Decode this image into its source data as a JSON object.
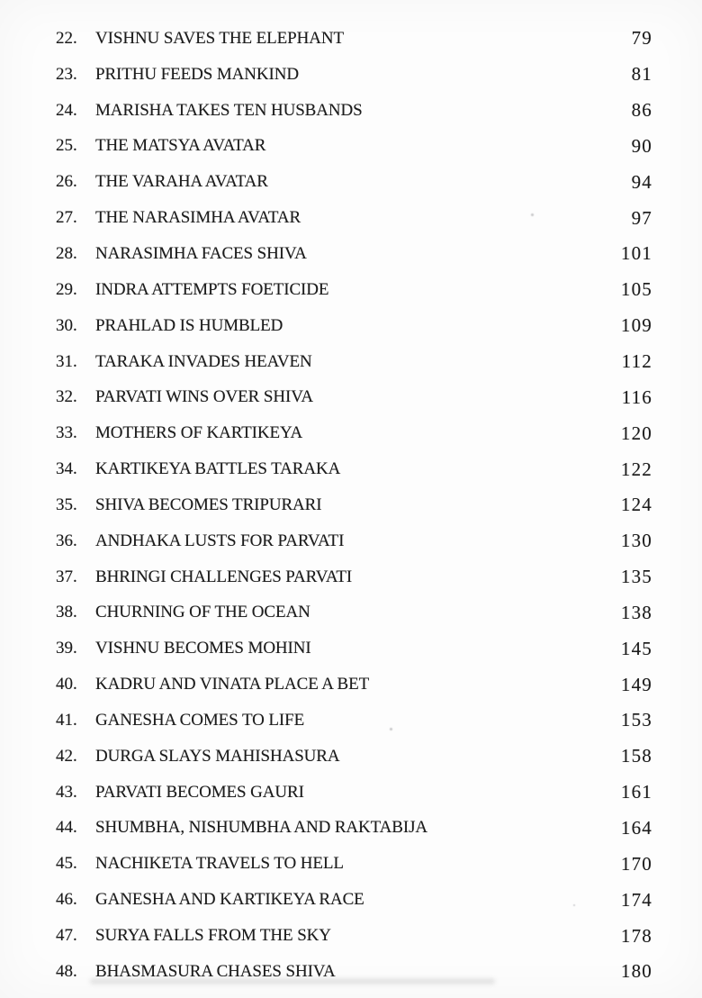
{
  "toc": {
    "entries": [
      {
        "num": "22.",
        "title": "VISHNU SAVES THE ELEPHANT",
        "page": "79"
      },
      {
        "num": "23.",
        "title": "PRITHU FEEDS MANKIND",
        "page": "81"
      },
      {
        "num": "24.",
        "title": "MARISHA TAKES TEN HUSBANDS",
        "page": "86"
      },
      {
        "num": "25.",
        "title": "THE MATSYA AVATAR",
        "page": "90"
      },
      {
        "num": "26.",
        "title": "THE VARAHA AVATAR",
        "page": "94"
      },
      {
        "num": "27.",
        "title": "THE NARASIMHA AVATAR",
        "page": "97"
      },
      {
        "num": "28.",
        "title": "NARASIMHA FACES SHIVA",
        "page": "101"
      },
      {
        "num": "29.",
        "title": "INDRA ATTEMPTS FOETICIDE",
        "page": "105"
      },
      {
        "num": "30.",
        "title": "PRAHLAD IS HUMBLED",
        "page": "109"
      },
      {
        "num": "31.",
        "title": "TARAKA INVADES HEAVEN",
        "page": "112"
      },
      {
        "num": "32.",
        "title": "PARVATI WINS OVER SHIVA",
        "page": "116"
      },
      {
        "num": "33.",
        "title": "MOTHERS OF KARTIKEYA",
        "page": "120"
      },
      {
        "num": "34.",
        "title": "KARTIKEYA BATTLES TARAKA",
        "page": "122"
      },
      {
        "num": "35.",
        "title": "SHIVA BECOMES TRIPURARI",
        "page": "124"
      },
      {
        "num": "36.",
        "title": "ANDHAKA LUSTS FOR PARVATI",
        "page": "130"
      },
      {
        "num": "37.",
        "title": "BHRINGI CHALLENGES PARVATI",
        "page": "135"
      },
      {
        "num": "38.",
        "title": "CHURNING OF THE OCEAN",
        "page": "138"
      },
      {
        "num": "39.",
        "title": "VISHNU BECOMES MOHINI",
        "page": "145"
      },
      {
        "num": "40.",
        "title": "KADRU AND VINATA PLACE A BET",
        "page": "149"
      },
      {
        "num": "41.",
        "title": "GANESHA COMES TO LIFE",
        "page": "153"
      },
      {
        "num": "42.",
        "title": "DURGA SLAYS MAHISHASURA",
        "page": "158"
      },
      {
        "num": "43.",
        "title": "PARVATI BECOMES GAURI",
        "page": "161"
      },
      {
        "num": "44.",
        "title": "SHUMBHA, NISHUMBHA AND RAKTABIJA",
        "page": "164"
      },
      {
        "num": "45.",
        "title": "NACHIKETA TRAVELS TO HELL",
        "page": "170"
      },
      {
        "num": "46.",
        "title": "GANESHA AND KARTIKEYA RACE",
        "page": "174"
      },
      {
        "num": "47.",
        "title": "SURYA FALLS FROM THE SKY",
        "page": "178"
      },
      {
        "num": "48.",
        "title": "BHASMASURA CHASES SHIVA",
        "page": "180"
      }
    ]
  }
}
